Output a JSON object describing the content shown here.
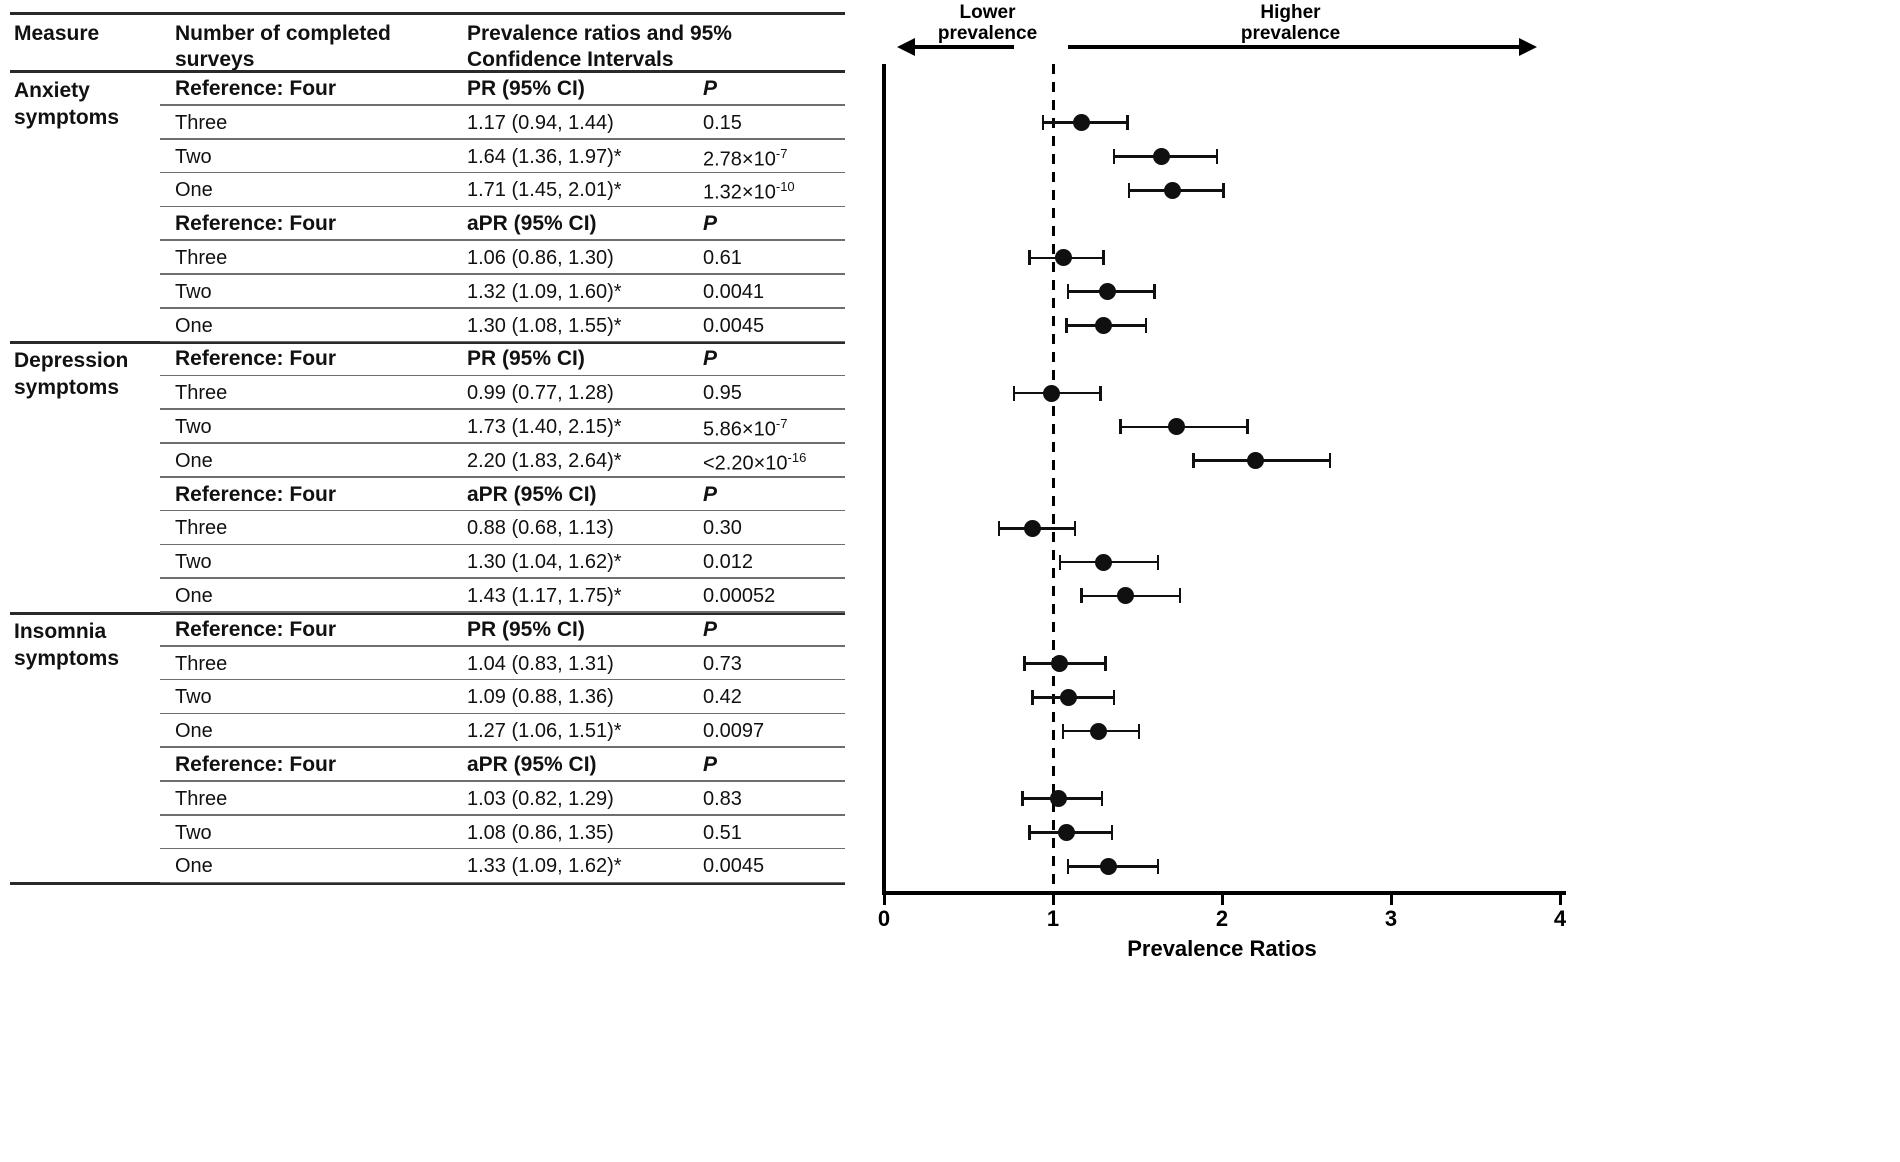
{
  "table_header": {
    "measure": "Measure",
    "surveys": "Number of completed surveys",
    "ci": "Prevalence ratios and 95% Confidence Intervals"
  },
  "chart_data": {
    "type": "forest",
    "xlabel": "Prevalence Ratios",
    "xlim": [
      0,
      4
    ],
    "x_ticks": [
      0,
      1,
      2,
      3,
      4
    ],
    "reference_line": 1,
    "annotations": {
      "lower": "Lower prevalence",
      "higher": "Higher prevalence"
    },
    "sections": [
      {
        "measure": "Anxiety symptoms",
        "blocks": [
          {
            "reference": "Reference: Four",
            "estimate_header": "PR (95% CI)",
            "p_header": "P",
            "rows": [
              {
                "label": "Three",
                "estimate": 1.17,
                "ci_low": 0.94,
                "ci_high": 1.44,
                "ci_text": "1.17 (0.94, 1.44)",
                "p": "0.15"
              },
              {
                "label": "Two",
                "estimate": 1.64,
                "ci_low": 1.36,
                "ci_high": 1.97,
                "ci_text": "1.64 (1.36, 1.97)*",
                "p": "2.78×10",
                "p_sup": "-7"
              },
              {
                "label": "One",
                "estimate": 1.71,
                "ci_low": 1.45,
                "ci_high": 2.01,
                "ci_text": "1.71 (1.45, 2.01)*",
                "p": "1.32×10",
                "p_sup": "-10"
              }
            ]
          },
          {
            "reference": "Reference: Four",
            "estimate_header": "aPR (95% CI)",
            "p_header": "P",
            "rows": [
              {
                "label": "Three",
                "estimate": 1.06,
                "ci_low": 0.86,
                "ci_high": 1.3,
                "ci_text": "1.06 (0.86, 1.30)",
                "p": "0.61"
              },
              {
                "label": "Two",
                "estimate": 1.32,
                "ci_low": 1.09,
                "ci_high": 1.6,
                "ci_text": "1.32 (1.09, 1.60)*",
                "p": "0.0041"
              },
              {
                "label": "One",
                "estimate": 1.3,
                "ci_low": 1.08,
                "ci_high": 1.55,
                "ci_text": "1.30 (1.08, 1.55)*",
                "p": "0.0045"
              }
            ]
          }
        ]
      },
      {
        "measure": "Depression symptoms",
        "blocks": [
          {
            "reference": "Reference: Four",
            "estimate_header": "PR (95% CI)",
            "p_header": "P",
            "rows": [
              {
                "label": "Three",
                "estimate": 0.99,
                "ci_low": 0.77,
                "ci_high": 1.28,
                "ci_text": "0.99 (0.77, 1.28)",
                "p": "0.95"
              },
              {
                "label": "Two",
                "estimate": 1.73,
                "ci_low": 1.4,
                "ci_high": 2.15,
                "ci_text": "1.73 (1.40, 2.15)*",
                "p": "5.86×10",
                "p_sup": "-7"
              },
              {
                "label": "One",
                "estimate": 2.2,
                "ci_low": 1.83,
                "ci_high": 2.64,
                "ci_text": "2.20 (1.83, 2.64)*",
                "p": "<2.20×10",
                "p_sup": "-16"
              }
            ]
          },
          {
            "reference": "Reference: Four",
            "estimate_header": "aPR (95% CI)",
            "p_header": "P",
            "rows": [
              {
                "label": "Three",
                "estimate": 0.88,
                "ci_low": 0.68,
                "ci_high": 1.13,
                "ci_text": "0.88 (0.68, 1.13)",
                "p": "0.30"
              },
              {
                "label": "Two",
                "estimate": 1.3,
                "ci_low": 1.04,
                "ci_high": 1.62,
                "ci_text": "1.30 (1.04, 1.62)*",
                "p": "0.012"
              },
              {
                "label": "One",
                "estimate": 1.43,
                "ci_low": 1.17,
                "ci_high": 1.75,
                "ci_text": "1.43 (1.17, 1.75)*",
                "p": "0.00052"
              }
            ]
          }
        ]
      },
      {
        "measure": "Insomnia symptoms",
        "blocks": [
          {
            "reference": "Reference: Four",
            "estimate_header": "PR (95% CI)",
            "p_header": "P",
            "rows": [
              {
                "label": "Three",
                "estimate": 1.04,
                "ci_low": 0.83,
                "ci_high": 1.31,
                "ci_text": "1.04 (0.83, 1.31)",
                "p": "0.73"
              },
              {
                "label": "Two",
                "estimate": 1.09,
                "ci_low": 0.88,
                "ci_high": 1.36,
                "ci_text": "1.09 (0.88, 1.36)",
                "p": "0.42"
              },
              {
                "label": "One",
                "estimate": 1.27,
                "ci_low": 1.06,
                "ci_high": 1.51,
                "ci_text": "1.27 (1.06, 1.51)*",
                "p": "0.0097"
              }
            ]
          },
          {
            "reference": "Reference: Four",
            "estimate_header": "aPR (95% CI)",
            "p_header": "P",
            "rows": [
              {
                "label": "Three",
                "estimate": 1.03,
                "ci_low": 0.82,
                "ci_high": 1.29,
                "ci_text": "1.03 (0.82, 1.29)",
                "p": "0.83"
              },
              {
                "label": "Two",
                "estimate": 1.08,
                "ci_low": 0.86,
                "ci_high": 1.35,
                "ci_text": "1.08 (0.86, 1.35)",
                "p": "0.51"
              },
              {
                "label": "One",
                "estimate": 1.33,
                "ci_low": 1.09,
                "ci_high": 1.62,
                "ci_text": "1.33 (1.09, 1.62)*",
                "p": "0.0045"
              }
            ]
          }
        ]
      }
    ]
  }
}
